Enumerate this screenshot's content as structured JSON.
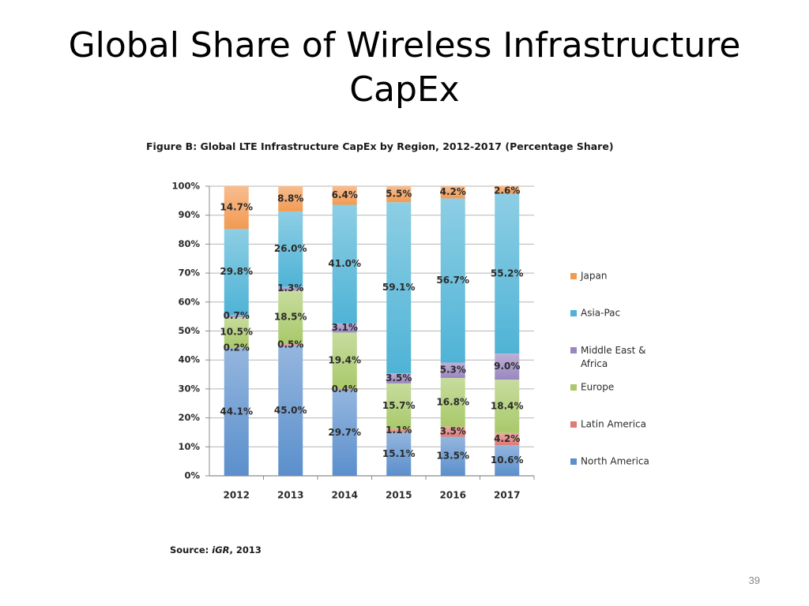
{
  "slide": {
    "title_line1": "Global Share of Wireless Infrastructure",
    "title_line2": "CapEx",
    "page_number": "39",
    "source_label": "Source: ",
    "source_name": "iGR",
    "source_year": ", 2013"
  },
  "chart_data": {
    "type": "bar",
    "stacked": true,
    "title": "Figure B: Global LTE Infrastructure CapEx by Region, 2012-2017 (Percentage Share)",
    "categories": [
      "2012",
      "2013",
      "2014",
      "2015",
      "2016",
      "2017"
    ],
    "ylim": [
      0,
      100
    ],
    "y_ticks": [
      "0%",
      "10%",
      "20%",
      "30%",
      "40%",
      "50%",
      "60%",
      "70%",
      "80%",
      "90%",
      "100%"
    ],
    "grid": true,
    "legend_position": "right",
    "series": [
      {
        "name": "North America",
        "color": "#5b8fcc",
        "values": [
          44.1,
          45.0,
          29.7,
          15.1,
          13.5,
          10.6
        ],
        "labels": [
          "44.1%",
          "45.0%",
          "29.7%",
          "15.1%",
          "13.5%",
          "10.6%"
        ]
      },
      {
        "name": "Latin America",
        "color": "#e07a74",
        "values": [
          0.2,
          0.5,
          0.4,
          1.1,
          3.5,
          4.2
        ],
        "labels": [
          "0.2%",
          "0.5%",
          "0.4%",
          "1.1%",
          "3.5%",
          "4.2%"
        ]
      },
      {
        "name": "Europe",
        "color": "#a9c96a",
        "values": [
          10.5,
          18.5,
          19.4,
          15.7,
          16.8,
          18.4
        ],
        "labels": [
          "10.5%",
          "18.5%",
          "19.4%",
          "15.7%",
          "16.8%",
          "18.4%"
        ]
      },
      {
        "name": "Middle East & Africa",
        "color": "#9a86c0",
        "values": [
          0.7,
          1.3,
          3.1,
          3.5,
          5.3,
          9.0
        ],
        "labels": [
          "0.7%",
          "1.3%",
          "3.1%",
          "3.5%",
          "5.3%",
          "9.0%"
        ]
      },
      {
        "name": "Asia-Pac",
        "color": "#4fb3d6",
        "values": [
          29.8,
          26.0,
          41.0,
          59.1,
          56.7,
          55.2
        ],
        "labels": [
          "29.8%",
          "26.0%",
          "41.0%",
          "59.1%",
          "56.7%",
          "55.2%"
        ]
      },
      {
        "name": "Japan",
        "color": "#f29a52",
        "values": [
          14.7,
          8.8,
          6.4,
          5.5,
          4.2,
          2.6
        ],
        "labels": [
          "14.7%",
          "8.8%",
          "6.4%",
          "5.5%",
          "4.2%",
          "2.6%"
        ]
      }
    ],
    "legend_order": [
      "Japan",
      "Asia-Pac",
      "Middle East & Africa",
      "Europe",
      "Latin America",
      "North America"
    ]
  }
}
